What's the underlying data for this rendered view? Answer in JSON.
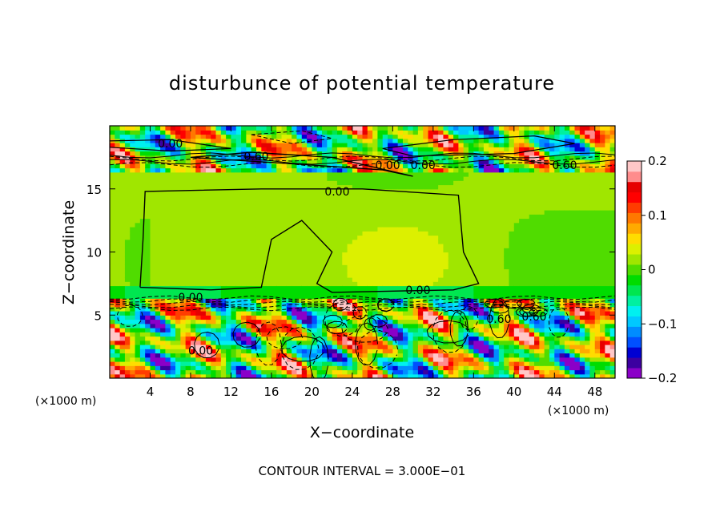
{
  "chart_data": {
    "type": "heatmap",
    "title": "disturbunce of potential temperature",
    "xlabel": "X−coordinate",
    "ylabel": "Z−coordinate",
    "x_unit_left": "(×1000 m)",
    "x_unit_right": "(×1000 m)",
    "xlim": [
      0,
      50
    ],
    "ylim": [
      0,
      20
    ],
    "x_ticks": [
      4,
      8,
      12,
      16,
      20,
      24,
      28,
      32,
      36,
      40,
      44,
      48
    ],
    "y_ticks": [
      5,
      10,
      15
    ],
    "colorbar": {
      "range": [
        -0.2,
        0.2
      ],
      "tick_values": [
        0.2,
        0.1,
        0,
        -0.1,
        -0.2
      ],
      "tick_labels": [
        "0.2",
        "0.1",
        "0",
        "−0.1",
        "−0.2"
      ],
      "colors": [
        "#8b00c8",
        "#3c00a0",
        "#0000d2",
        "#0050ff",
        "#008cff",
        "#00c8ff",
        "#00f0f0",
        "#00f0a0",
        "#00e650",
        "#00dc00",
        "#50dc00",
        "#a0e600",
        "#dcf000",
        "#ffdc00",
        "#ffaa00",
        "#ff7800",
        "#ff3c00",
        "#ff0000",
        "#e60000",
        "#ff8c8c",
        "#ffc8c8"
      ]
    },
    "contour_interval": "CONTOUR INTERVAL = 3.000E−01",
    "contour_labels": [
      {
        "text": "0.00",
        "x": 6,
        "z": 18.6
      },
      {
        "text": "0.60",
        "x": 14.5,
        "z": 17.6
      },
      {
        "text": "0.00",
        "x": 27.5,
        "z": 16.9
      },
      {
        "text": "0.00",
        "x": 31,
        "z": 16.9
      },
      {
        "text": "0.60",
        "x": 45,
        "z": 16.9
      },
      {
        "text": "0.00",
        "x": 22.5,
        "z": 14.8
      },
      {
        "text": "0.00",
        "x": 30.5,
        "z": 7
      },
      {
        "text": "0.00",
        "x": 8,
        "z": 6.4
      },
      {
        "text": "0.60",
        "x": 42,
        "z": 4.9
      },
      {
        "text": "0.60",
        "x": 38.5,
        "z": 4.7
      },
      {
        "text": "0.00",
        "x": 9,
        "z": 2.2
      }
    ],
    "regions": [
      {
        "z0": 0,
        "z1": 6.3,
        "field": "turbulent",
        "mean": 0.0
      },
      {
        "z0": 6.3,
        "z1": 7.2,
        "field": "layer",
        "mean": -0.02
      },
      {
        "z0": 7.2,
        "z1": 16.5,
        "field": "uniform",
        "mean": 0.01
      },
      {
        "z0": 16.5,
        "z1": 20,
        "field": "turbulent",
        "mean": 0.0
      }
    ],
    "grid": false
  }
}
